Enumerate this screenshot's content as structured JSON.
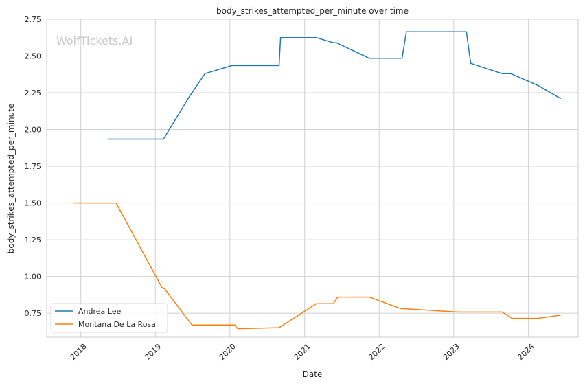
{
  "chart_data": {
    "type": "line",
    "title": "body_strikes_attempted_per_minute over time",
    "xlabel": "Date",
    "ylabel": "body_strikes_attempted_per_minute",
    "watermark": "WolfTickets.AI",
    "xlim": [
      "2017-07-18",
      "2024-09-01"
    ],
    "ylim": [
      0.587,
      2.75
    ],
    "x_ticks": [
      "2018",
      "2019",
      "2020",
      "2021",
      "2022",
      "2023",
      "2024"
    ],
    "y_ticks": [
      "0.75",
      "1.00",
      "1.25",
      "1.50",
      "1.75",
      "2.00",
      "2.25",
      "2.50",
      "2.75"
    ],
    "grid": true,
    "legend_position": "lower-left",
    "series": [
      {
        "name": "Andrea Lee",
        "color": "#1f77b4",
        "points": [
          [
            "2018-05-12",
            1.935
          ],
          [
            "2019-02-10",
            1.935
          ],
          [
            "2019-06-15",
            2.22
          ],
          [
            "2019-09-01",
            2.38
          ],
          [
            "2020-01-11",
            2.435
          ],
          [
            "2020-08-29",
            2.435
          ],
          [
            "2020-09-05",
            2.625
          ],
          [
            "2021-02-27",
            2.625
          ],
          [
            "2021-05-22",
            2.59
          ],
          [
            "2021-06-05",
            2.59
          ],
          [
            "2021-11-13",
            2.485
          ],
          [
            "2022-04-23",
            2.485
          ],
          [
            "2022-05-14",
            2.665
          ],
          [
            "2023-03-04",
            2.665
          ],
          [
            "2023-03-25",
            2.45
          ],
          [
            "2023-08-26",
            2.38
          ],
          [
            "2023-10-07",
            2.38
          ],
          [
            "2024-02-17",
            2.3
          ],
          [
            "2024-06-08",
            2.21
          ]
        ]
      },
      {
        "name": "Montana De La Rosa",
        "color": "#ff7f0e",
        "points": [
          [
            "2017-11-25",
            1.5
          ],
          [
            "2018-06-23",
            1.5
          ],
          [
            "2019-02-02",
            0.925
          ],
          [
            "2019-02-16",
            0.915
          ],
          [
            "2019-06-29",
            0.67
          ],
          [
            "2020-01-25",
            0.67
          ],
          [
            "2020-02-08",
            0.645
          ],
          [
            "2020-08-29",
            0.652
          ],
          [
            "2021-02-27",
            0.815
          ],
          [
            "2021-05-22",
            0.815
          ],
          [
            "2021-06-12",
            0.86
          ],
          [
            "2021-11-13",
            0.86
          ],
          [
            "2022-04-16",
            0.782
          ],
          [
            "2023-01-21",
            0.758
          ],
          [
            "2023-08-26",
            0.758
          ],
          [
            "2023-10-14",
            0.715
          ],
          [
            "2024-02-17",
            0.715
          ],
          [
            "2024-06-08",
            0.737
          ]
        ]
      }
    ]
  }
}
